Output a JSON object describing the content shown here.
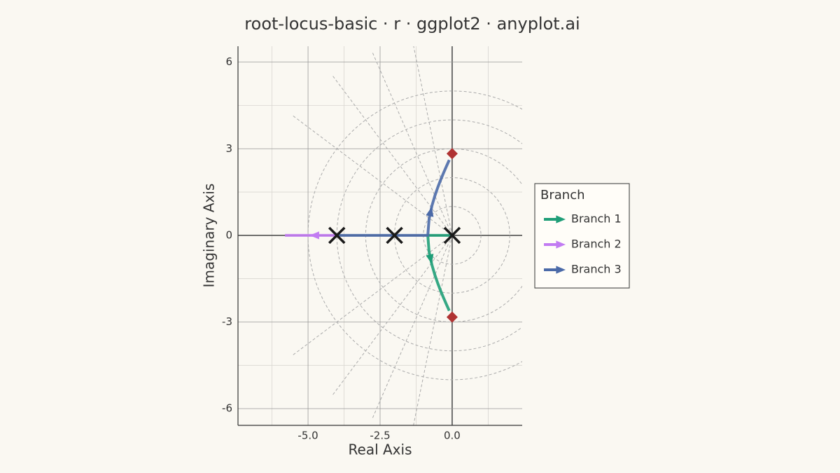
{
  "chart_data": {
    "type": "root-locus",
    "title": "root-locus-basic · r · ggplot2 · anyplot.ai",
    "x_label": "Real Axis",
    "y_label": "Imaginary Axis",
    "xlim": [
      -7.43,
      2.43
    ],
    "ylim": [
      -6.58,
      6.55
    ],
    "xticks": [
      {
        "value": -5,
        "label": "-5.0"
      },
      -2.5,
      {
        "value": 0,
        "label": "0.0"
      }
    ],
    "yticks": [
      -6,
      -3,
      0,
      3,
      6
    ],
    "x_minor": [
      -6.25,
      -3.75,
      -1.25,
      1.25
    ],
    "y_minor": [
      -4.5,
      -1.5,
      1.5,
      4.5
    ],
    "grid": true,
    "wn_grid": [
      1,
      2,
      3,
      4,
      5
    ],
    "zeta_grid": [
      0.2,
      0.4,
      0.6,
      0.8
    ],
    "legend_title": "Branch",
    "legend_position": "right",
    "series": [
      {
        "name": "Branch 1",
        "color": "#1f9e78",
        "x": [
          0,
          -0.4,
          -0.845,
          -0.8,
          -0.7,
          -0.6,
          -0.5,
          -0.4,
          -0.3,
          -0.2,
          -0.1
        ],
        "values": [
          0,
          0,
          0,
          -0.57,
          -1.03,
          -1.37,
          -1.66,
          -1.92,
          -2.16,
          -2.39,
          -2.61
        ]
      },
      {
        "name": "Branch 2",
        "color": "#c27bf2",
        "x": [
          -4,
          -4.5,
          -5,
          -5.5,
          -5.8
        ],
        "values": [
          0,
          0,
          0,
          0,
          0
        ]
      },
      {
        "name": "Branch 3",
        "color": "#4b6aa8",
        "x": [
          -4,
          -2,
          -0.845,
          -0.8,
          -0.7,
          -0.6,
          -0.5,
          -0.4,
          -0.3,
          -0.2,
          -0.1
        ],
        "values": [
          0,
          0,
          0,
          0.57,
          1.03,
          1.37,
          1.66,
          1.92,
          2.16,
          2.39,
          2.61
        ]
      }
    ],
    "poles": {
      "x": [
        -4,
        -2,
        0
      ],
      "values": [
        0,
        0,
        0
      ],
      "color": "#1a1a1a"
    },
    "crossings": {
      "x": [
        0,
        0
      ],
      "values": [
        2.83,
        -2.83
      ],
      "color": "#b03333"
    }
  }
}
